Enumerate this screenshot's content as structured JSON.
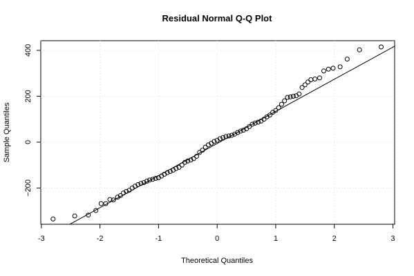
{
  "chart_data": {
    "type": "scatter",
    "title": "Residual Normal Q-Q Plot",
    "x_label": "Theoretical Quantiles",
    "y_label": "Sample Quantiles",
    "xlim": [
      -3.01,
      3.03
    ],
    "ylim": [
      -358,
      442
    ],
    "xticks": [
      -3,
      -2,
      -1,
      0,
      1,
      2,
      3
    ],
    "yticks": [
      {
        "value": -200,
        "label": "−200"
      },
      0,
      200,
      400
    ],
    "grid": true,
    "color": "#000000",
    "reference_line": {
      "intercept": -6,
      "slope": 140
    },
    "x": [
      -2.8,
      -2.43,
      -2.2,
      -2.07,
      -1.98,
      -1.9,
      -1.83,
      -1.77,
      -1.7,
      -1.65,
      -1.6,
      -1.55,
      -1.5,
      -1.45,
      -1.4,
      -1.35,
      -1.3,
      -1.25,
      -1.2,
      -1.15,
      -1.1,
      -1.05,
      -1.0,
      -0.95,
      -0.9,
      -0.85,
      -0.8,
      -0.75,
      -0.7,
      -0.65,
      -0.6,
      -0.55,
      -0.5,
      -0.45,
      -0.4,
      -0.35,
      -0.3,
      -0.25,
      -0.2,
      -0.15,
      -0.1,
      -0.05,
      0,
      0.05,
      0.1,
      0.15,
      0.2,
      0.25,
      0.3,
      0.35,
      0.4,
      0.45,
      0.5,
      0.55,
      0.6,
      0.65,
      0.7,
      0.75,
      0.8,
      0.85,
      0.9,
      0.95,
      1.0,
      1.05,
      1.1,
      1.15,
      1.2,
      1.25,
      1.3,
      1.35,
      1.4,
      1.45,
      1.5,
      1.55,
      1.6,
      1.67,
      1.75,
      1.82,
      1.9,
      1.98,
      2.1,
      2.22,
      2.43,
      2.8
    ],
    "values": [
      -335,
      -322,
      -318,
      -298,
      -268,
      -268,
      -250,
      -252,
      -240,
      -233,
      -222,
      -215,
      -210,
      -200,
      -192,
      -185,
      -180,
      -176,
      -170,
      -165,
      -162,
      -158,
      -155,
      -148,
      -140,
      -133,
      -128,
      -122,
      -115,
      -110,
      -100,
      -88,
      -82,
      -78,
      -72,
      -62,
      -45,
      -35,
      -22,
      -12,
      -5,
      3,
      8,
      15,
      20,
      24,
      27,
      30,
      35,
      42,
      48,
      52,
      58,
      68,
      78,
      83,
      87,
      92,
      100,
      110,
      118,
      130,
      138,
      150,
      165,
      180,
      195,
      197,
      200,
      202,
      210,
      238,
      250,
      262,
      272,
      275,
      280,
      310,
      318,
      322,
      328,
      362,
      402,
      415
    ]
  }
}
